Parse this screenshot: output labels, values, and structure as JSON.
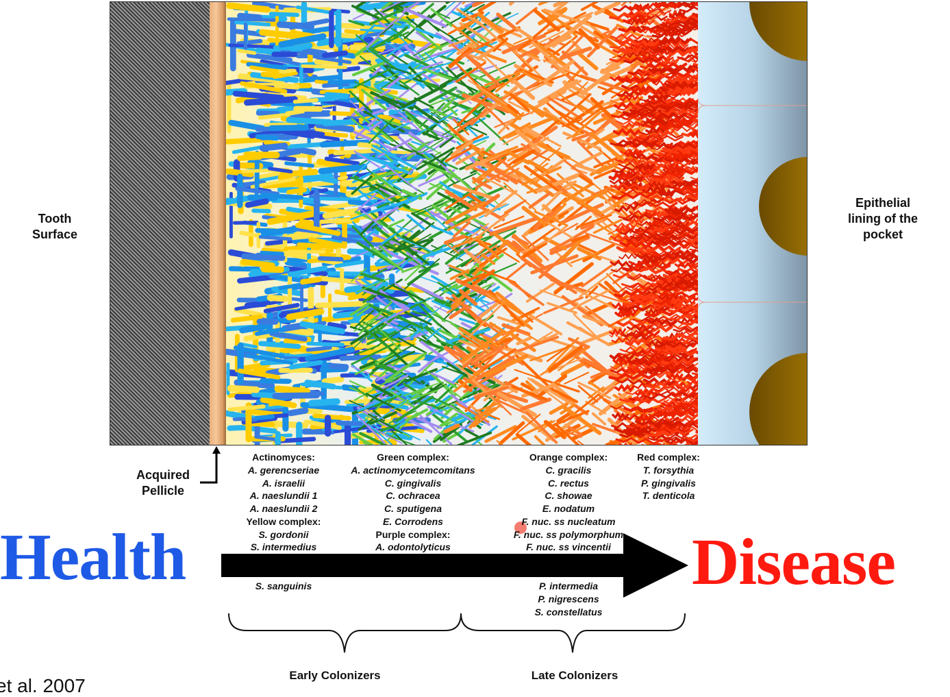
{
  "labels": {
    "tooth_surface": [
      "Tooth",
      "Surface"
    ],
    "epithelial": [
      "Epithelial",
      "lining of the",
      "pocket"
    ],
    "acquired_pellicle": [
      "Acquired",
      "Pellicle"
    ],
    "health": "Health",
    "disease": "Disease",
    "early_colonizers": "Early Colonizers",
    "late_colonizers": "Late Colonizers",
    "citation_fragment": "et al. 2007"
  },
  "columns": {
    "col1_top": [
      "Actinomyces:",
      "A. gerencseriae",
      "A. israelii",
      "A. naeslundii 1",
      "A. naeslundii 2",
      "Yellow  complex:",
      "S. gordonii",
      "S. intermedius"
    ],
    "col1_bottom": [
      "S. sanguinis"
    ],
    "col2_top": [
      "Green complex:",
      "A. actinomycetemcomitans",
      "C. gingivalis",
      "C. ochracea",
      "C. sputigena",
      "E. Corrodens",
      "Purple complex:",
      "A. odontolyticus"
    ],
    "col3_top": [
      "Orange complex:",
      "C. gracilis",
      "C. rectus",
      "C. showae",
      "E. nodatum",
      "F. nuc. ss nucleatum",
      "F. nuc. ss polymorphum",
      "F. nuc. ss vincentii"
    ],
    "col3_bottom": [
      "P. intermedia",
      "P. nigrescens",
      "S. constellatus"
    ],
    "col4_top": [
      "Red complex:",
      "T. forsythia",
      "P. gingivalis",
      "T. denticola"
    ]
  },
  "colors": {
    "health": "#1f5ae6",
    "disease": "#ff1a10",
    "yellow_complex": "#ffcc00",
    "blue_actinomyces": "#1a8fe6",
    "green_complex": "#2e9e2e",
    "purple_complex": "#a58cf0",
    "orange_complex": "#ff8a20",
    "red_complex": "#ee2200",
    "tooth": "#555555",
    "gingiva_cells": "#b8860b"
  }
}
